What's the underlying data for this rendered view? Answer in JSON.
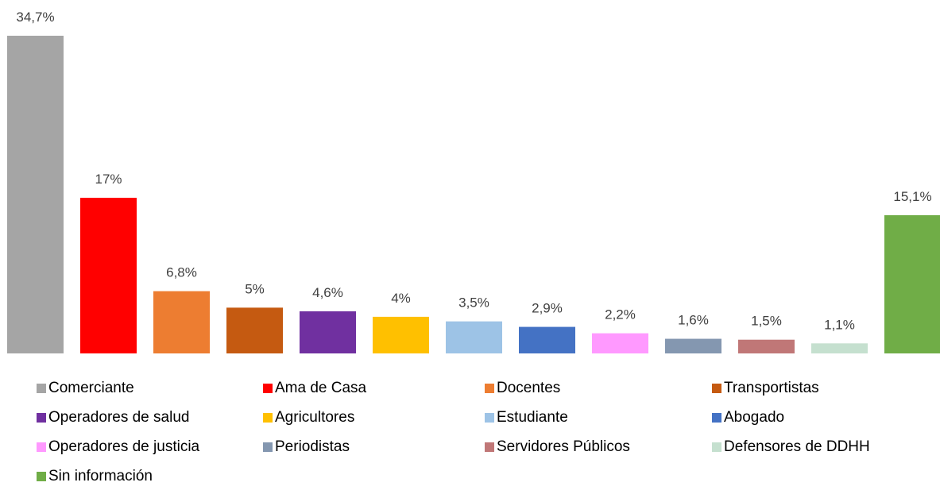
{
  "chart_data": {
    "type": "bar",
    "categories": [
      "Comerciante",
      "Ama de Casa",
      "Docentes",
      "Transportistas",
      "Operadores de salud",
      "Agricultores",
      "Estudiante",
      "Abogado",
      "Operadores de justicia",
      "Periodistas",
      "Servidores Públicos",
      "Defensores de DDHH",
      "Sin información"
    ],
    "values": [
      34.7,
      17,
      6.8,
      5,
      4.6,
      4,
      3.5,
      2.9,
      2.2,
      1.6,
      1.5,
      1.1,
      15.1
    ],
    "value_labels": [
      "34,7%",
      "17%",
      "6,8%",
      "5%",
      "4,6%",
      "4%",
      "3,5%",
      "2,9%",
      "2,2%",
      "1,6%",
      "1,5%",
      "1,1%",
      "15,1%"
    ],
    "colors": [
      "#a5a5a5",
      "#ff0000",
      "#ed7d31",
      "#c55a11",
      "#7030a0",
      "#ffc000",
      "#9dc3e6",
      "#4472c4",
      "#ff99ff",
      "#8497b0",
      "#c07777",
      "#c5e0cf",
      "#70ad47"
    ],
    "legend": "bottom"
  }
}
